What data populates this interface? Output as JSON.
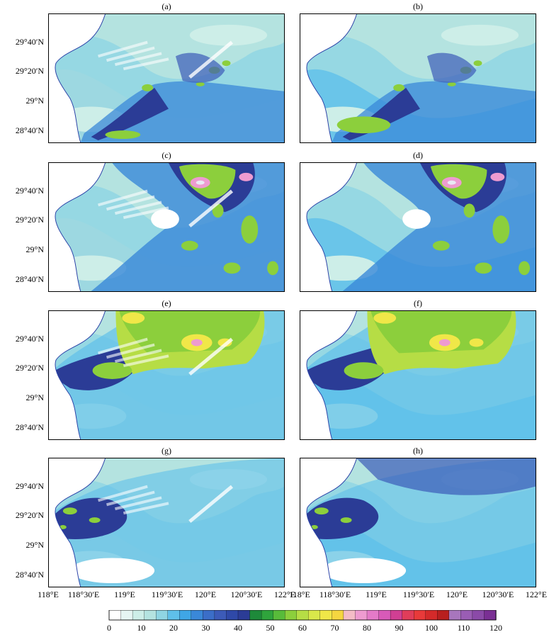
{
  "panels": [
    {
      "label": "(a)",
      "variant": "a"
    },
    {
      "label": "(b)",
      "variant": "b"
    },
    {
      "label": "(c)",
      "variant": "c"
    },
    {
      "label": "(d)",
      "variant": "d"
    },
    {
      "label": "(e)",
      "variant": "e"
    },
    {
      "label": "(f)",
      "variant": "f"
    },
    {
      "label": "(g)",
      "variant": "g"
    },
    {
      "label": "(h)",
      "variant": "h"
    }
  ],
  "lat_labels": [
    "29°40′N",
    "29°20′N",
    "29°N",
    "28°40′N"
  ],
  "lon_labels": [
    "118°E",
    "118°30′E",
    "119°E",
    "119°30′E",
    "120°E",
    "120°30′E",
    "122°E"
  ],
  "colorbar": {
    "ticks": [
      "0",
      "10",
      "20",
      "30",
      "40",
      "50",
      "60",
      "70",
      "80",
      "90",
      "100",
      "110",
      "120"
    ],
    "colors": [
      "#ffffff",
      "#e6f5f3",
      "#cdeee8",
      "#b4e3e0",
      "#8fd5e3",
      "#5fc0ea",
      "#3fa6e6",
      "#3a88d8",
      "#3b6ec8",
      "#3c5bb8",
      "#2f49a8",
      "#2b3c96",
      "#1e8a3a",
      "#2fa43c",
      "#58bb3a",
      "#8ccf3c",
      "#b6dd45",
      "#d9e84a",
      "#f0e748",
      "#f5d640",
      "#f4bcc6",
      "#ee9bd0",
      "#e47ac8",
      "#d85ab8",
      "#d13f93",
      "#e03d5a",
      "#e83a3a",
      "#d42a2a",
      "#b81f1f",
      "#a876bd",
      "#9a5db4",
      "#8b4aa8",
      "#7a2f94"
    ]
  }
}
